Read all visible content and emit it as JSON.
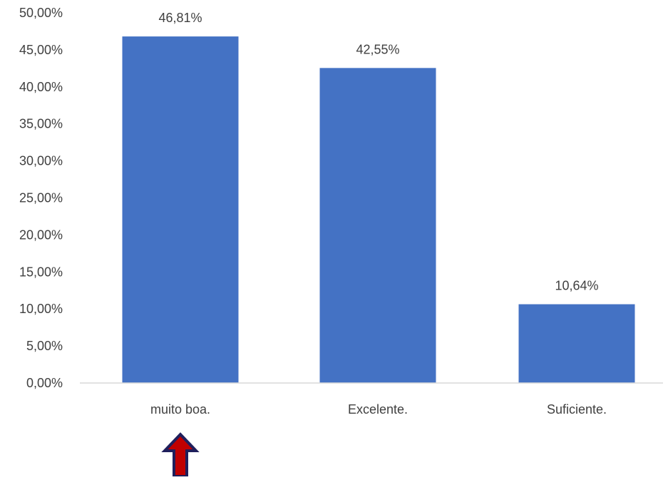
{
  "chart_data": {
    "type": "bar",
    "title": "",
    "xlabel": "",
    "ylabel": "",
    "categories": [
      "muito boa.",
      "Excelente.",
      "Suficiente."
    ],
    "values": [
      46.81,
      42.55,
      10.64
    ],
    "data_labels": [
      "46,81%",
      "42,55%",
      "10,64%"
    ],
    "ylim": [
      0,
      50
    ],
    "y_ticks": [
      0,
      5,
      10,
      15,
      20,
      25,
      30,
      35,
      40,
      45,
      50
    ],
    "y_tick_labels": [
      "0,00%",
      "5,00%",
      "10,00%",
      "15,00%",
      "20,00%",
      "25,00%",
      "30,00%",
      "35,00%",
      "40,00%",
      "45,00%",
      "50,00%"
    ],
    "grid": false,
    "bar_color": "#4472C4",
    "annotation": {
      "type": "up-arrow",
      "target_category_index": 0,
      "fill_color": "#C00000",
      "stroke_color": "#1F1F5C"
    }
  }
}
